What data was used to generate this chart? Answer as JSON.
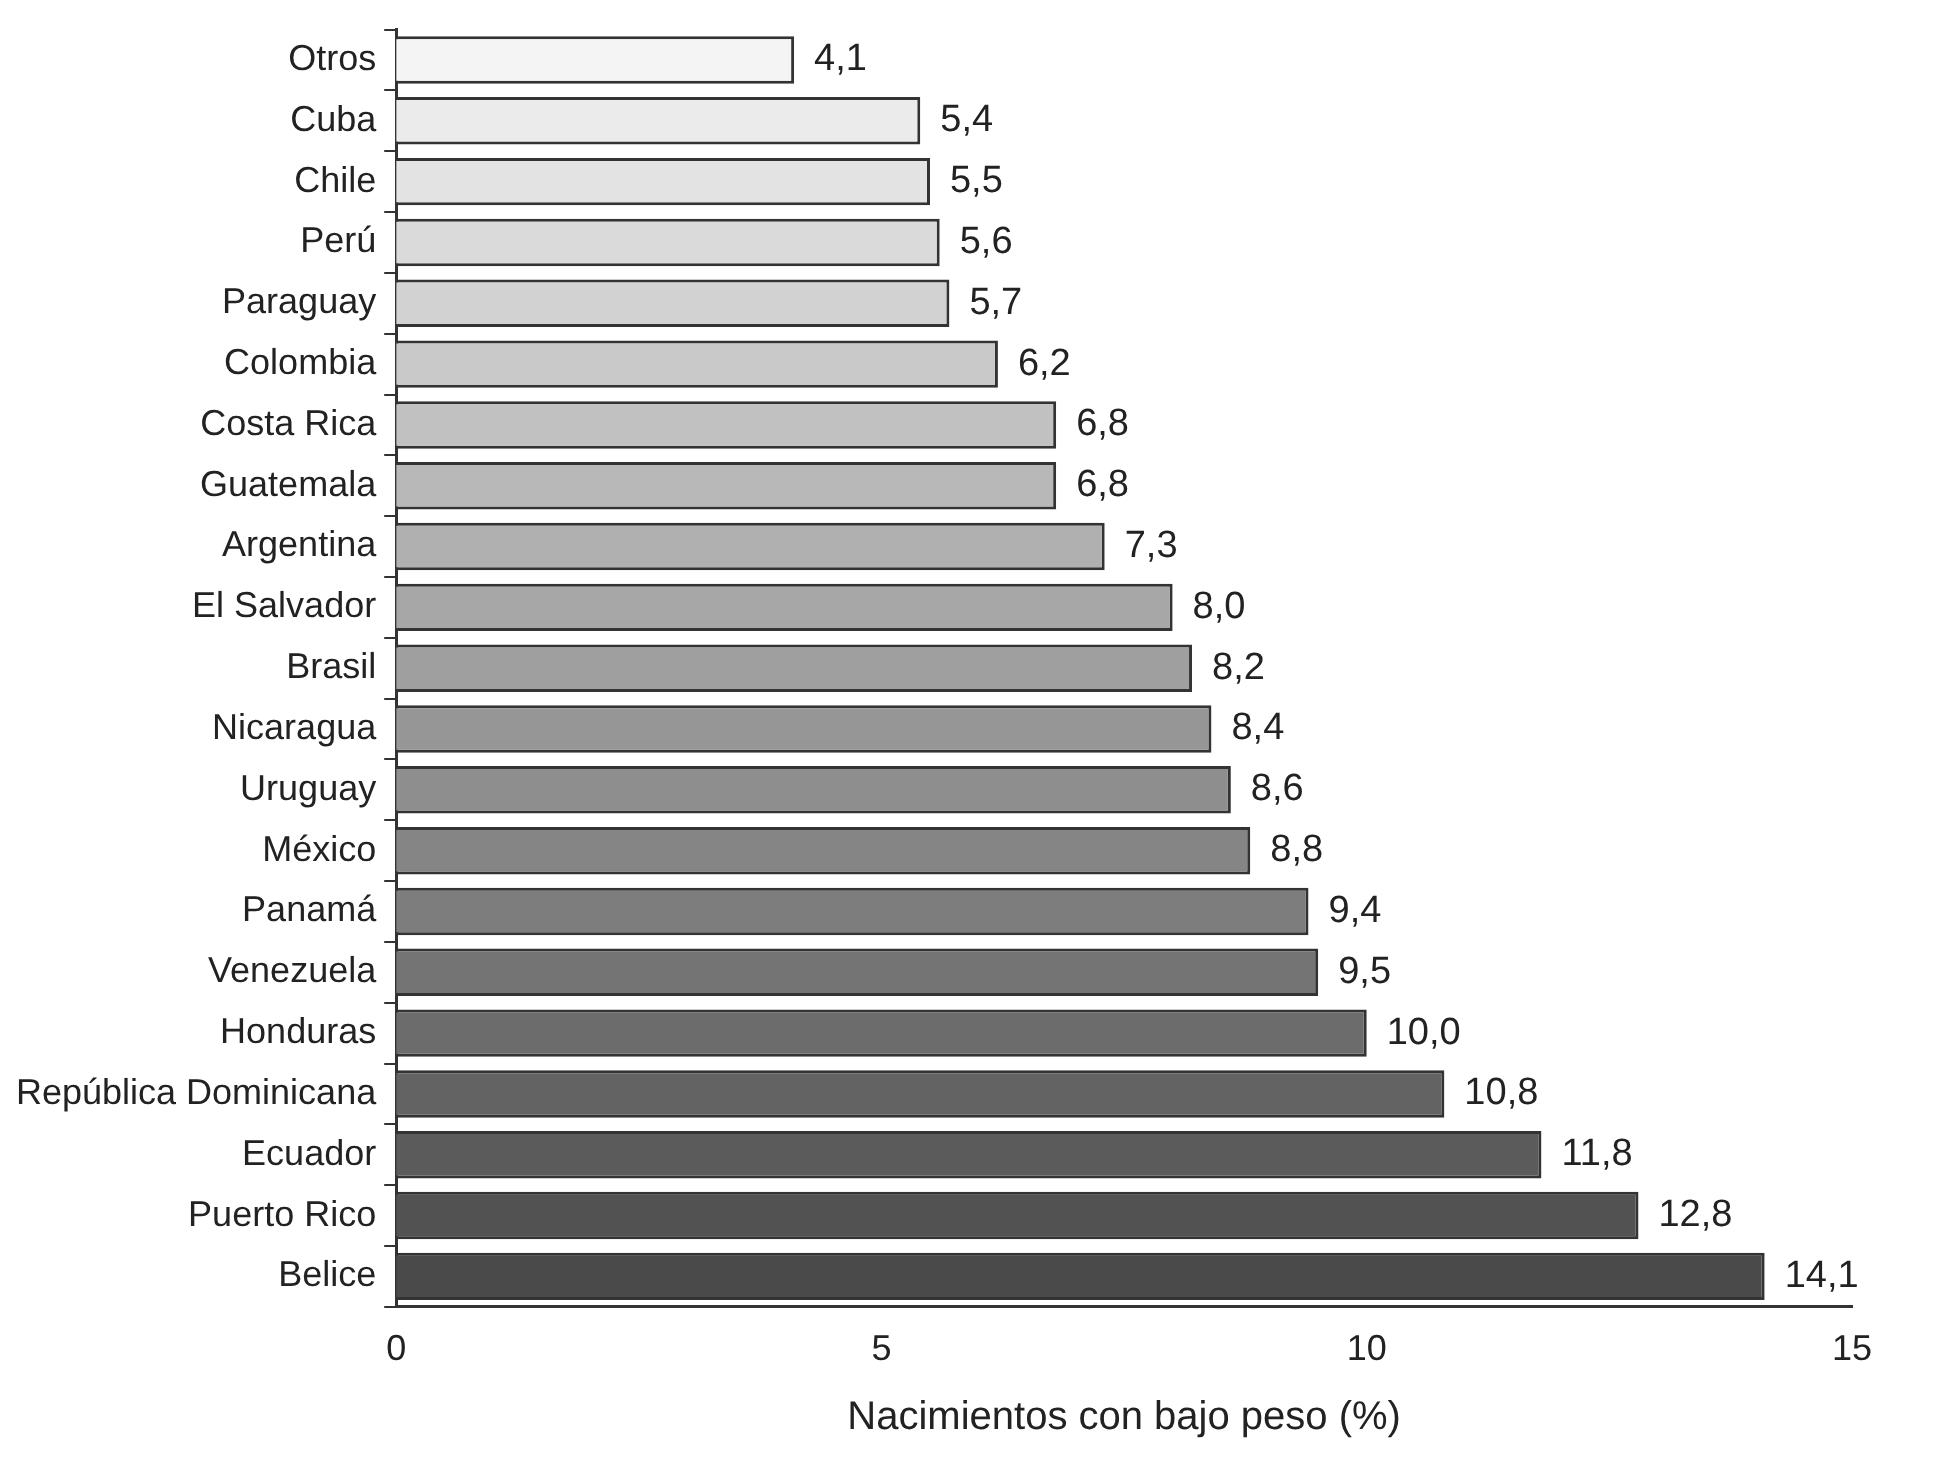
{
  "chart_data": {
    "type": "bar",
    "orientation": "horizontal",
    "xlabel": "Nacimientos con bajo peso (%)",
    "categories": [
      "Otros",
      "Cuba",
      "Chile",
      "Perú",
      "Paraguay",
      "Colombia",
      "Costa Rica",
      "Guatemala",
      "Argentina",
      "El Salvador",
      "Brasil",
      "Nicaragua",
      "Uruguay",
      "México",
      "Panamá",
      "Venezuela",
      "Honduras",
      "República Dominicana",
      "Ecuador",
      "Puerto Rico",
      "Belice"
    ],
    "values": [
      4.1,
      5.4,
      5.5,
      5.6,
      5.7,
      6.2,
      6.8,
      6.8,
      7.3,
      8.0,
      8.2,
      8.4,
      8.6,
      8.8,
      9.4,
      9.5,
      10.0,
      10.8,
      11.8,
      12.8,
      14.1
    ],
    "value_labels": [
      "4,1",
      "5,4",
      "5,5",
      "5,6",
      "5,7",
      "6,2",
      "6,8",
      "6,8",
      "7,3",
      "8,0",
      "8,2",
      "8,4",
      "8,6",
      "8,8",
      "9,4",
      "9,5",
      "10,0",
      "10,8",
      "11,8",
      "12,8",
      "14,1"
    ],
    "colors": [
      "#f4f4f4",
      "#ebebeb",
      "#e3e3e3",
      "#dadada",
      "#d2d2d2",
      "#c9c9c9",
      "#c1c1c1",
      "#b8b8b8",
      "#b0b0b0",
      "#a7a7a7",
      "#9f9f9f",
      "#969696",
      "#8e8e8e",
      "#858585",
      "#7d7d7d",
      "#747474",
      "#6c6c6c",
      "#636363",
      "#5b5b5b",
      "#525252",
      "#4a4a4a"
    ],
    "xlim": [
      0,
      15
    ],
    "xticks": [
      0,
      5,
      10,
      15
    ],
    "grid": false,
    "legend": false
  }
}
